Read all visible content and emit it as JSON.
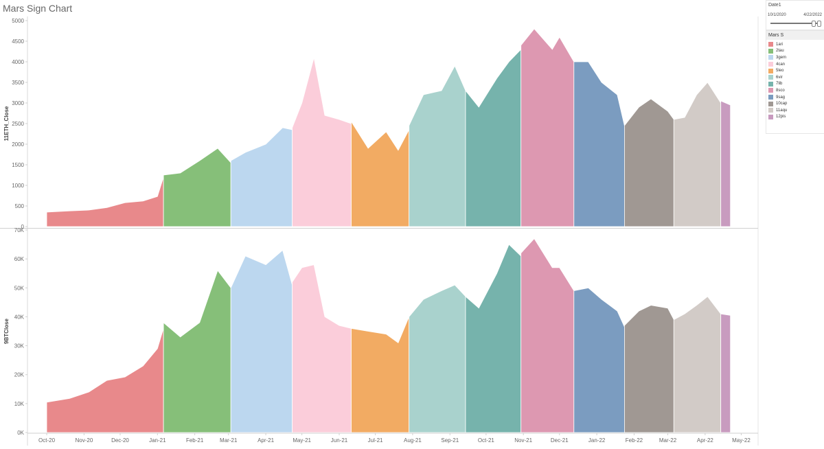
{
  "page": {
    "title": "Mars Sign Chart"
  },
  "date_filter": {
    "title": "Date1",
    "start": "10/1/2020",
    "end": "4/22/2022",
    "position": 1.0
  },
  "legend": {
    "title": "Mars S",
    "items": [
      {
        "label": "1ari",
        "color": "#e8898b"
      },
      {
        "label": "2tau",
        "color": "#86bf79"
      },
      {
        "label": "3gem",
        "color": "#bcd7ef"
      },
      {
        "label": "4can",
        "color": "#fbcdda"
      },
      {
        "label": "5leo",
        "color": "#f2ab63"
      },
      {
        "label": "6vir",
        "color": "#a9d2cd"
      },
      {
        "label": "7lib",
        "color": "#76b3ac"
      },
      {
        "label": "8sco",
        "color": "#dd98b1"
      },
      {
        "label": "9sag",
        "color": "#7b9cc0"
      },
      {
        "label": "10cap",
        "color": "#a09893"
      },
      {
        "label": "11aqu",
        "color": "#d2cbc7"
      },
      {
        "label": "12pis",
        "color": "#c89bbf"
      }
    ]
  },
  "chart_data": [
    {
      "type": "area",
      "ylabel": "11ETH_Close",
      "ylim": [
        0,
        5000
      ],
      "yticks": [
        0,
        500,
        1000,
        1500,
        2000,
        2500,
        3000,
        3500,
        4000,
        4500,
        5000
      ],
      "ytick_labels": [
        "0",
        "500",
        "1000",
        "1500",
        "2000",
        "2500",
        "3000",
        "3500",
        "4000",
        "4500",
        "5000"
      ],
      "series": [
        {
          "name": "1ari",
          "points": [
            [
              "2020-10-01",
              350
            ],
            [
              "2020-10-20",
              380
            ],
            [
              "2020-11-05",
              400
            ],
            [
              "2020-11-20",
              460
            ],
            [
              "2020-12-05",
              580
            ],
            [
              "2020-12-20",
              620
            ],
            [
              "2021-01-01",
              730
            ],
            [
              "2021-01-06",
              1200
            ]
          ]
        },
        {
          "name": "2tau",
          "points": [
            [
              "2021-01-06",
              1250
            ],
            [
              "2021-01-20",
              1300
            ],
            [
              "2021-02-05",
              1600
            ],
            [
              "2021-02-20",
              1900
            ],
            [
              "2021-03-03",
              1550
            ]
          ]
        },
        {
          "name": "3gem",
          "points": [
            [
              "2021-03-03",
              1600
            ],
            [
              "2021-03-15",
              1800
            ],
            [
              "2021-04-01",
              2000
            ],
            [
              "2021-04-15",
              2400
            ],
            [
              "2021-04-23",
              2350
            ]
          ]
        },
        {
          "name": "4can",
          "points": [
            [
              "2021-04-23",
              2400
            ],
            [
              "2021-05-01",
              3000
            ],
            [
              "2021-05-11",
              4100
            ],
            [
              "2021-05-20",
              2700
            ],
            [
              "2021-06-01",
              2600
            ],
            [
              "2021-06-11",
              2500
            ]
          ]
        },
        {
          "name": "5leo",
          "points": [
            [
              "2021-06-11",
              2550
            ],
            [
              "2021-06-25",
              1900
            ],
            [
              "2021-07-10",
              2300
            ],
            [
              "2021-07-20",
              1850
            ],
            [
              "2021-07-29",
              2350
            ]
          ]
        },
        {
          "name": "6vir",
          "points": [
            [
              "2021-07-29",
              2450
            ],
            [
              "2021-08-10",
              3200
            ],
            [
              "2021-08-25",
              3300
            ],
            [
              "2021-09-05",
              3900
            ],
            [
              "2021-09-14",
              3300
            ]
          ]
        },
        {
          "name": "7lib",
          "points": [
            [
              "2021-09-14",
              3300
            ],
            [
              "2021-09-25",
              2900
            ],
            [
              "2021-10-10",
              3600
            ],
            [
              "2021-10-20",
              4000
            ],
            [
              "2021-10-30",
              4300
            ]
          ]
        },
        {
          "name": "8sco",
          "points": [
            [
              "2021-10-30",
              4400
            ],
            [
              "2021-11-10",
              4800
            ],
            [
              "2021-11-25",
              4300
            ],
            [
              "2021-12-01",
              4600
            ],
            [
              "2021-12-13",
              4000
            ]
          ]
        },
        {
          "name": "9sag",
          "points": [
            [
              "2021-12-13",
              4000
            ],
            [
              "2021-12-25",
              4000
            ],
            [
              "2022-01-05",
              3500
            ],
            [
              "2022-01-18",
              3200
            ],
            [
              "2022-01-24",
              2450
            ]
          ]
        },
        {
          "name": "10cap",
          "points": [
            [
              "2022-01-24",
              2450
            ],
            [
              "2022-02-05",
              2900
            ],
            [
              "2022-02-15",
              3100
            ],
            [
              "2022-03-01",
              2800
            ],
            [
              "2022-03-06",
              2600
            ]
          ]
        },
        {
          "name": "11aqu",
          "points": [
            [
              "2022-03-06",
              2600
            ],
            [
              "2022-03-15",
              2650
            ],
            [
              "2022-03-25",
              3200
            ],
            [
              "2022-04-03",
              3500
            ],
            [
              "2022-04-14",
              3000
            ]
          ]
        },
        {
          "name": "12pis",
          "points": [
            [
              "2022-04-14",
              3050
            ],
            [
              "2022-04-22",
              2950
            ]
          ]
        }
      ]
    },
    {
      "type": "area",
      "ylabel": "9BTClose",
      "ylim": [
        0,
        70000
      ],
      "yticks": [
        0,
        10000,
        20000,
        30000,
        40000,
        50000,
        60000,
        70000
      ],
      "ytick_labels": [
        "0K",
        "10K",
        "20K",
        "30K",
        "40K",
        "50K",
        "60K",
        "70K"
      ],
      "series": [
        {
          "name": "1ari",
          "points": [
            [
              "2020-10-01",
              10500
            ],
            [
              "2020-10-20",
              11800
            ],
            [
              "2020-11-05",
              14000
            ],
            [
              "2020-11-20",
              18000
            ],
            [
              "2020-12-05",
              19200
            ],
            [
              "2020-12-20",
              23000
            ],
            [
              "2021-01-01",
              29000
            ],
            [
              "2021-01-06",
              36000
            ]
          ]
        },
        {
          "name": "2tau",
          "points": [
            [
              "2021-01-06",
              38000
            ],
            [
              "2021-01-20",
              33000
            ],
            [
              "2021-02-05",
              38000
            ],
            [
              "2021-02-20",
              56000
            ],
            [
              "2021-03-03",
              50000
            ]
          ]
        },
        {
          "name": "3gem",
          "points": [
            [
              "2021-03-03",
              50000
            ],
            [
              "2021-03-15",
              61000
            ],
            [
              "2021-04-01",
              58000
            ],
            [
              "2021-04-15",
              63000
            ],
            [
              "2021-04-23",
              51000
            ]
          ]
        },
        {
          "name": "4can",
          "points": [
            [
              "2021-04-23",
              52000
            ],
            [
              "2021-05-01",
              57000
            ],
            [
              "2021-05-11",
              58000
            ],
            [
              "2021-05-20",
              40000
            ],
            [
              "2021-06-01",
              37000
            ],
            [
              "2021-06-11",
              36000
            ]
          ]
        },
        {
          "name": "5leo",
          "points": [
            [
              "2021-06-11",
              36000
            ],
            [
              "2021-06-25",
              35000
            ],
            [
              "2021-07-10",
              34000
            ],
            [
              "2021-07-20",
              31000
            ],
            [
              "2021-07-29",
              40000
            ]
          ]
        },
        {
          "name": "6vir",
          "points": [
            [
              "2021-07-29",
              40000
            ],
            [
              "2021-08-10",
              46000
            ],
            [
              "2021-08-25",
              49000
            ],
            [
              "2021-09-05",
              51000
            ],
            [
              "2021-09-14",
              47000
            ]
          ]
        },
        {
          "name": "7lib",
          "points": [
            [
              "2021-09-14",
              47000
            ],
            [
              "2021-09-25",
              43000
            ],
            [
              "2021-10-10",
              55000
            ],
            [
              "2021-10-20",
              65000
            ],
            [
              "2021-10-30",
              61000
            ]
          ]
        },
        {
          "name": "8sco",
          "points": [
            [
              "2021-10-30",
              62000
            ],
            [
              "2021-11-10",
              67000
            ],
            [
              "2021-11-25",
              57000
            ],
            [
              "2021-12-01",
              57000
            ],
            [
              "2021-12-13",
              49000
            ]
          ]
        },
        {
          "name": "9sag",
          "points": [
            [
              "2021-12-13",
              49000
            ],
            [
              "2021-12-25",
              50000
            ],
            [
              "2022-01-05",
              46000
            ],
            [
              "2022-01-18",
              42000
            ],
            [
              "2022-01-24",
              36500
            ]
          ]
        },
        {
          "name": "10cap",
          "points": [
            [
              "2022-01-24",
              37000
            ],
            [
              "2022-02-05",
              42000
            ],
            [
              "2022-02-15",
              44000
            ],
            [
              "2022-03-01",
              43000
            ],
            [
              "2022-03-06",
              39000
            ]
          ]
        },
        {
          "name": "11aqu",
          "points": [
            [
              "2022-03-06",
              39000
            ],
            [
              "2022-03-15",
              41000
            ],
            [
              "2022-03-25",
              44000
            ],
            [
              "2022-04-03",
              47000
            ],
            [
              "2022-04-14",
              41000
            ]
          ]
        },
        {
          "name": "12pis",
          "points": [
            [
              "2022-04-14",
              41000
            ],
            [
              "2022-04-22",
              40500
            ]
          ]
        }
      ]
    }
  ],
  "x_axis": {
    "range": [
      "2020-09-15",
      "2022-05-15"
    ],
    "ticks": [
      {
        "date": "2020-10-01",
        "label": "Oct-20"
      },
      {
        "date": "2020-11-01",
        "label": "Nov-20"
      },
      {
        "date": "2020-12-01",
        "label": "Dec-20"
      },
      {
        "date": "2021-01-01",
        "label": "Jan-21"
      },
      {
        "date": "2021-02-01",
        "label": "Feb-21"
      },
      {
        "date": "2021-03-01",
        "label": "Mar-21"
      },
      {
        "date": "2021-04-01",
        "label": "Apr-21"
      },
      {
        "date": "2021-05-01",
        "label": "May-21"
      },
      {
        "date": "2021-06-01",
        "label": "Jun-21"
      },
      {
        "date": "2021-07-01",
        "label": "Jul-21"
      },
      {
        "date": "2021-08-01",
        "label": "Aug-21"
      },
      {
        "date": "2021-09-01",
        "label": "Sep-21"
      },
      {
        "date": "2021-10-01",
        "label": "Oct-21"
      },
      {
        "date": "2021-11-01",
        "label": "Nov-21"
      },
      {
        "date": "2021-12-01",
        "label": "Dec-21"
      },
      {
        "date": "2022-01-01",
        "label": "Jan-22"
      },
      {
        "date": "2022-02-01",
        "label": "Feb-22"
      },
      {
        "date": "2022-03-01",
        "label": "Mar-22"
      },
      {
        "date": "2022-04-01",
        "label": "Apr-22"
      },
      {
        "date": "2022-05-01",
        "label": "May-22"
      }
    ]
  }
}
